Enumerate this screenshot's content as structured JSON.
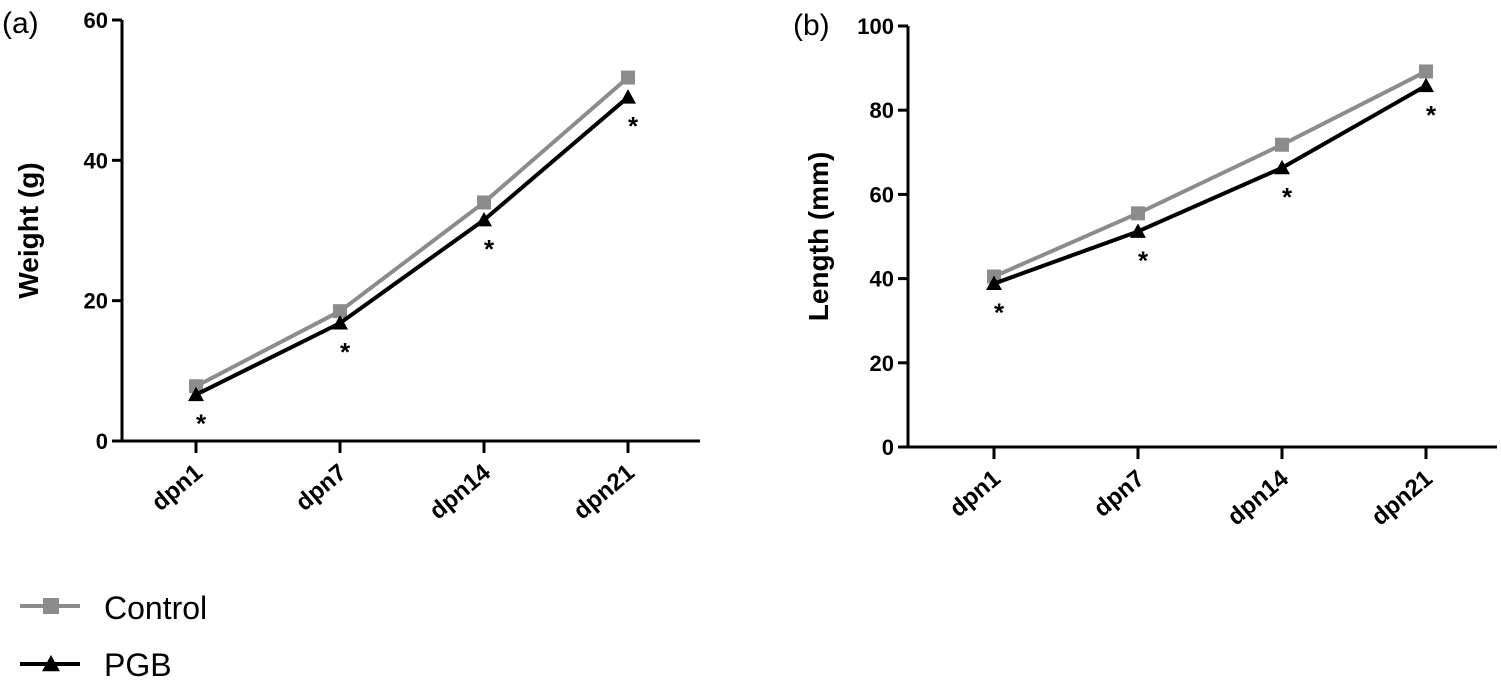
{
  "chart_data": [
    {
      "type": "line",
      "panel_label": "(a)",
      "ylabel": "Weight (g)",
      "xlabel": "",
      "categories": [
        "dpn1",
        "dpn7",
        "dpn14",
        "dpn21"
      ],
      "ylim": [
        0,
        60
      ],
      "yticks": [
        0,
        20,
        40,
        60
      ],
      "grid": false,
      "series": [
        {
          "name": "Control",
          "values": [
            7.8,
            18.5,
            34.0,
            51.8
          ],
          "color": "#8c8c8c",
          "marker": "square"
        },
        {
          "name": "PGB",
          "values": [
            6.6,
            16.8,
            31.5,
            49.0
          ],
          "color": "#000000",
          "marker": "triangle"
        }
      ],
      "annotations": [
        {
          "category": "dpn1",
          "text": "*"
        },
        {
          "category": "dpn7",
          "text": "*"
        },
        {
          "category": "dpn14",
          "text": "*"
        },
        {
          "category": "dpn21",
          "text": "*"
        }
      ]
    },
    {
      "type": "line",
      "panel_label": "(b)",
      "ylabel": "Length (mm)",
      "xlabel": "",
      "categories": [
        "dpn1",
        "dpn7",
        "dpn14",
        "dpn21"
      ],
      "ylim": [
        0,
        100
      ],
      "yticks": [
        0,
        20,
        40,
        60,
        80,
        100
      ],
      "grid": false,
      "series": [
        {
          "name": "Control",
          "values": [
            40.5,
            55.5,
            71.8,
            89.2
          ],
          "color": "#8c8c8c",
          "marker": "square"
        },
        {
          "name": "PGB",
          "values": [
            38.8,
            51.2,
            66.3,
            85.8
          ],
          "color": "#000000",
          "marker": "triangle"
        }
      ],
      "annotations": [
        {
          "category": "dpn1",
          "text": "*"
        },
        {
          "category": "dpn7",
          "text": "*"
        },
        {
          "category": "dpn14",
          "text": "*"
        },
        {
          "category": "dpn21",
          "text": "*"
        }
      ]
    }
  ],
  "legend": {
    "placement": "bottom-left",
    "items": [
      {
        "name": "Control",
        "color": "#8c8c8c",
        "marker": "square"
      },
      {
        "name": "PGB",
        "color": "#000000",
        "marker": "triangle"
      }
    ]
  }
}
